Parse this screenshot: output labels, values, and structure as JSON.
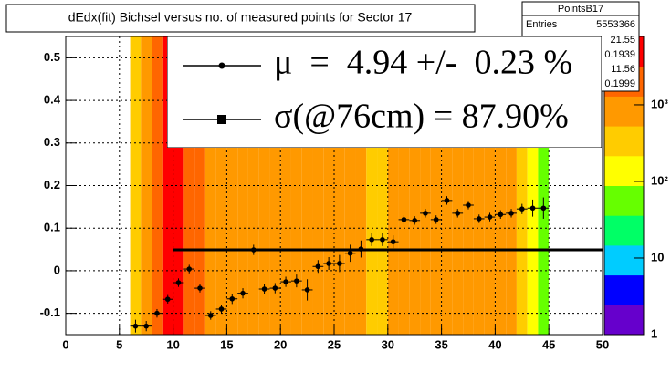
{
  "chart_data": {
    "type": "heatmap",
    "title": "dEdx(fit) Bichsel versus no. of measured points for Sector 17",
    "xlim": [
      0,
      50
    ],
    "xticks": [
      0,
      5,
      10,
      15,
      20,
      25,
      30,
      35,
      40,
      45,
      50
    ],
    "ylim": [
      -0.15,
      0.55
    ],
    "yticks": [
      -0.1,
      0,
      0.1,
      0.2,
      0.3,
      0.4,
      0.5
    ],
    "grid": true,
    "cells": {
      "bins": [
        6,
        7,
        8,
        9,
        10,
        11,
        12,
        13,
        14,
        15,
        16,
        17,
        18,
        19,
        20,
        21,
        22,
        23,
        24,
        25,
        26,
        27,
        28,
        29,
        30,
        31,
        32,
        33,
        34,
        35,
        36,
        37,
        38,
        39,
        40,
        41,
        42,
        43,
        44,
        45
      ],
      "values": [
        400,
        900,
        3000,
        5000,
        5000,
        2000,
        2000,
        900,
        900,
        900,
        900,
        900,
        900,
        900,
        900,
        900,
        900,
        900,
        900,
        900,
        900,
        900,
        400,
        400,
        700,
        700,
        700,
        700,
        700,
        700,
        700,
        700,
        700,
        700,
        700,
        700,
        250,
        150,
        60
      ]
    },
    "zlim": [
      1,
      7800
    ],
    "zlog": true,
    "zticks": [
      1,
      10,
      {
        "value": 100,
        "label": "10²"
      },
      {
        "value": 1000,
        "label": "10³"
      }
    ],
    "palette": [
      "#6600cc",
      "#0000ff",
      "#00ccff",
      "#00ff66",
      "#66ff00",
      "#ffff00",
      "#ffcc00",
      "#ff9900",
      "#ff6600",
      "#ff0000"
    ],
    "series": [
      {
        "name": "μ  =  4.94 +/-  0.23 %",
        "type": "scatter",
        "color": "#000000",
        "x": [
          6.5,
          7.5,
          8.5,
          9.5,
          10.5,
          11.5,
          12.5,
          13.5,
          14.5,
          15.5,
          16.5,
          17.5,
          18.5,
          19.5,
          20.5,
          21.5,
          22.5,
          23.5,
          24.5,
          25.5,
          26.5,
          27.5,
          28.5,
          29.5,
          30.5,
          31.5,
          32.5,
          33.5,
          34.5,
          35.5,
          36.5,
          37.5,
          38.5,
          39.5,
          40.5,
          41.5,
          42.5,
          43.5,
          44.5
        ],
        "values": [
          -0.13,
          -0.13,
          -0.1,
          -0.067,
          -0.028,
          0.004,
          -0.041,
          -0.105,
          -0.09,
          -0.066,
          -0.053,
          0.049,
          -0.043,
          -0.041,
          -0.026,
          -0.024,
          -0.045,
          0.01,
          0.017,
          0.017,
          0.041,
          0.051,
          0.073,
          0.073,
          0.068,
          0.12,
          0.118,
          0.135,
          0.12,
          0.165,
          0.135,
          0.154,
          0.122,
          0.126,
          0.132,
          0.135,
          0.145,
          0.147,
          0.147
        ],
        "errors": [
          0.015,
          0.012,
          0.01,
          0.01,
          0.01,
          0.01,
          0.01,
          0.01,
          0.01,
          0.012,
          0.012,
          0.012,
          0.012,
          0.012,
          0.012,
          0.015,
          0.025,
          0.015,
          0.015,
          0.02,
          0.02,
          0.02,
          0.015,
          0.015,
          0.015,
          0.01,
          0.01,
          0.01,
          0.01,
          0.01,
          0.01,
          0.01,
          0.01,
          0.01,
          0.01,
          0.01,
          0.012,
          0.02,
          0.025
        ]
      },
      {
        "name": "σ(@76cm) = 87.90%",
        "type": "line",
        "color": "#000000",
        "x": [
          10,
          50
        ],
        "values": [
          0.049,
          0.049
        ]
      }
    ],
    "stats": {
      "title": "PointsB17",
      "entries_label": "Entries",
      "entries": 5553366,
      "values": [
        21.55,
        0.1939,
        11.56,
        0.1999
      ]
    }
  }
}
